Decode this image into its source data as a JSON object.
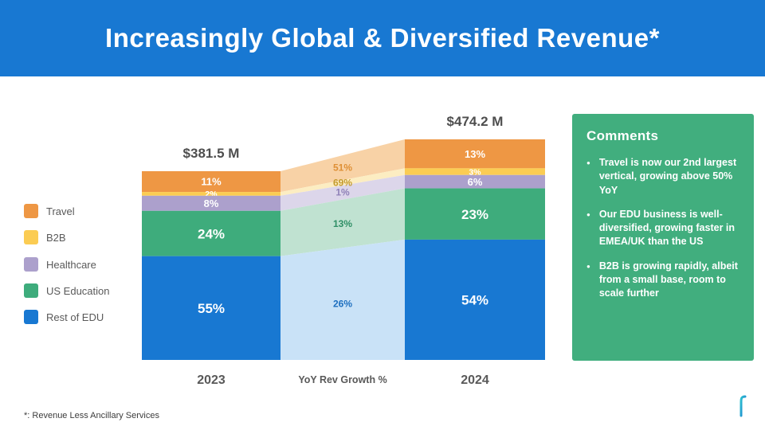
{
  "header": {
    "title": "Increasingly Global & Diversified Revenue*"
  },
  "chart_data": {
    "type": "bar",
    "subtype": "stacked-bar-with-flows",
    "categories": [
      "2023",
      "2024"
    ],
    "totals": [
      "$381.5 M",
      "$474.2 M"
    ],
    "middle_axis_label": "YoY Rev Growth %",
    "unit": "%",
    "segments": [
      {
        "name": "Travel",
        "color": "#EE9744",
        "flow_color": "#F8D2A6",
        "values": [
          11,
          13
        ],
        "growth": "51%",
        "growth_color": "#DE8F35",
        "label_color": "#ffffff"
      },
      {
        "name": "B2B",
        "color": "#FBCC53",
        "flow_color": "#FCEDC2",
        "values": [
          2,
          3
        ],
        "growth": "69%",
        "growth_color": "#C49B2F",
        "label_color": "#ffffff"
      },
      {
        "name": "Healthcare",
        "color": "#ACA0CC",
        "flow_color": "#DCD6EA",
        "values": [
          8,
          6
        ],
        "growth": "1%",
        "growth_color": "#8F81B8",
        "label_color": "#ffffff"
      },
      {
        "name": "US Education",
        "color": "#3EAC7C",
        "flow_color": "#C0E2D1",
        "values": [
          24,
          23
        ],
        "growth": "13%",
        "growth_color": "#2F8F66",
        "label_color": "#ffffff"
      },
      {
        "name": "Rest of EDU",
        "color": "#1878D2",
        "flow_color": "#C9E2F7",
        "values": [
          55,
          54
        ],
        "growth": "26%",
        "growth_color": "#1D6FBF",
        "label_color": "#ffffff"
      }
    ],
    "text_color": "#4E4E4E"
  },
  "comments": {
    "title": "Comments",
    "items": [
      "Travel is now our 2nd largest vertical, growing above 50% YoY",
      "Our EDU business is well-diversified, growing faster in EMEA/UK than the US",
      "B2B is growing rapidly, albeit from a small base, room to scale further"
    ]
  },
  "footnote": "*: Revenue Less Ancillary Services",
  "logo": {
    "name": "flywire-mark"
  }
}
